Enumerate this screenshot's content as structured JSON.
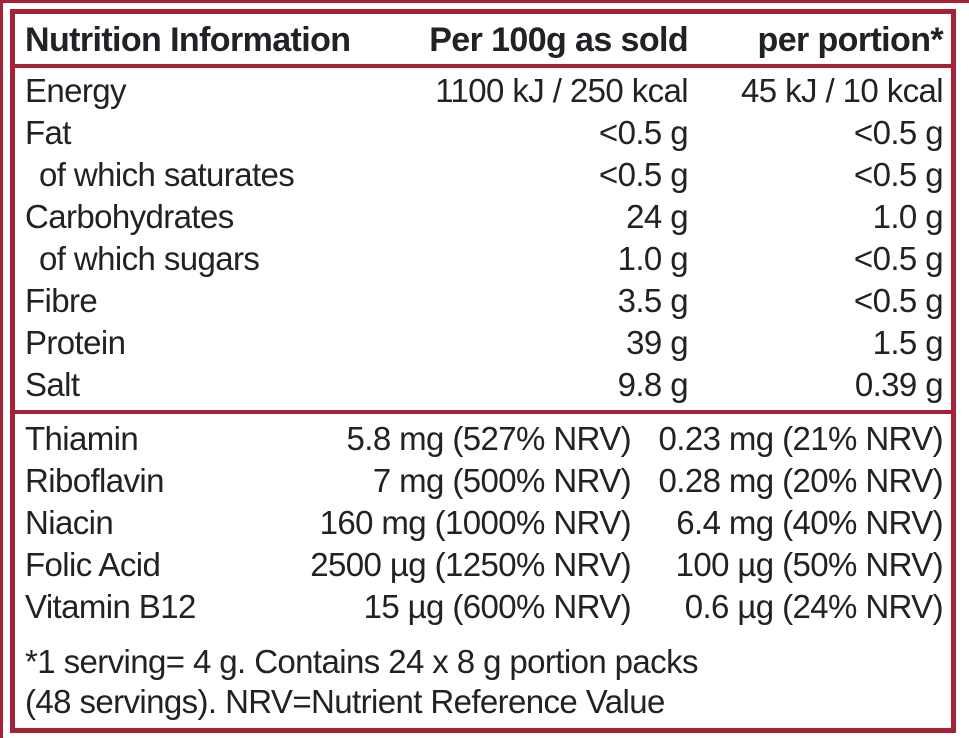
{
  "colors": {
    "border_red": "#A52337",
    "text": "#212126"
  },
  "table": {
    "header": {
      "col1": "Nutrition Information",
      "col2": "Per 100g as sold",
      "col3": "per portion*"
    },
    "nutrients": [
      {
        "label": "Energy",
        "per100g": "1100 kJ / 250 kcal",
        "portion": "45 kJ / 10 kcal"
      },
      {
        "label": "Fat",
        "per100g": "<0.5 g",
        "portion": "<0.5 g"
      },
      {
        "label": "of which saturates",
        "per100g": "<0.5 g",
        "portion": "<0.5 g"
      },
      {
        "label": "Carbohydrates",
        "per100g": "24 g",
        "portion": "1.0 g"
      },
      {
        "label": "of which sugars",
        "per100g": "1.0 g",
        "portion": "<0.5 g"
      },
      {
        "label": "Fibre",
        "per100g": "3.5 g",
        "portion": "<0.5 g"
      },
      {
        "label": "Protein",
        "per100g": "39 g",
        "portion": "1.5 g"
      },
      {
        "label": "Salt",
        "per100g": "9.8 g",
        "portion": "0.39 g"
      }
    ],
    "vitamins": [
      {
        "label": "Thiamin",
        "per100g": "5.8 mg (527% NRV)",
        "portion": "0.23 mg (21% NRV)"
      },
      {
        "label": "Riboflavin",
        "per100g": "7 mg (500% NRV)",
        "portion": "0.28 mg (20% NRV)"
      },
      {
        "label": "Niacin",
        "per100g": "160 mg (1000% NRV)",
        "portion": "6.4 mg (40% NRV)"
      },
      {
        "label": "Folic Acid",
        "per100g": "2500 µg (1250% NRV)",
        "portion": "100 µg (50% NRV)"
      },
      {
        "label": "Vitamin B12",
        "per100g": "15 µg (600% NRV)",
        "portion": "0.6 µg (24% NRV)"
      }
    ],
    "footnote_line1": "*1 serving= 4 g. Contains 24 x 8 g portion packs",
    "footnote_line2": "(48 servings). NRV=Nutrient Reference Value"
  }
}
